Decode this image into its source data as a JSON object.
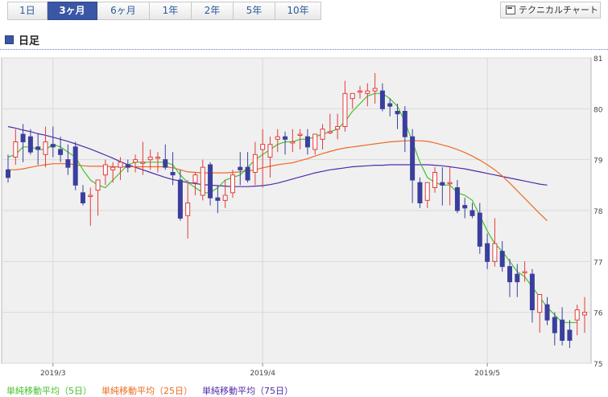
{
  "tabs": [
    "1日",
    "3ヶ月",
    "6ヶ月",
    "1年",
    "2年",
    "5年",
    "10年"
  ],
  "active_tab": "3ヶ月",
  "technical_button": {
    "label": "テクニカルチャート",
    "icon": "chart-window-icon"
  },
  "section_title": "日足",
  "colors": {
    "up": "#e23b3b",
    "down": "#3b3f9c",
    "ma5": "#44c22c",
    "ma25": "#ee6a1f",
    "ma75": "#4f2aa8",
    "plot_bg": "#f0f0f0",
    "grid": "#d9d9d9"
  },
  "legend": [
    {
      "label": "単純移動平均（5日）",
      "color": "#44c22c"
    },
    {
      "label": "単純移動平均（25日）",
      "color": "#ee6a1f"
    },
    {
      "label": "単純移動平均（75日）",
      "color": "#4f2aa8"
    }
  ],
  "chart_data": {
    "type": "candlestick",
    "title": "日足",
    "ylim": [
      75,
      81
    ],
    "y_ticks": [
      75,
      76,
      77,
      78,
      79,
      80,
      81
    ],
    "x_tick_labels": [
      {
        "label": "2019/3",
        "index": 6
      },
      {
        "label": "2019/4",
        "index": 34
      },
      {
        "label": "2019/5",
        "index": 64
      }
    ],
    "grid": true,
    "candles": [
      {
        "o": 78.8,
        "h": 79.1,
        "l": 78.55,
        "c": 78.65
      },
      {
        "o": 79.05,
        "h": 79.6,
        "l": 78.9,
        "c": 79.35
      },
      {
        "o": 79.5,
        "h": 79.7,
        "l": 78.95,
        "c": 79.35
      },
      {
        "o": 79.45,
        "h": 79.6,
        "l": 79.1,
        "c": 79.15
      },
      {
        "o": 79.25,
        "h": 79.5,
        "l": 78.9,
        "c": 79.2
      },
      {
        "o": 79.1,
        "h": 79.65,
        "l": 78.85,
        "c": 79.35
      },
      {
        "o": 79.3,
        "h": 79.65,
        "l": 79.05,
        "c": 79.25
      },
      {
        "o": 79.2,
        "h": 79.45,
        "l": 78.95,
        "c": 79.1
      },
      {
        "o": 79.0,
        "h": 79.3,
        "l": 78.7,
        "c": 78.85
      },
      {
        "o": 79.25,
        "h": 79.35,
        "l": 78.4,
        "c": 78.5
      },
      {
        "o": 78.35,
        "h": 78.5,
        "l": 78.1,
        "c": 78.15
      },
      {
        "o": 78.3,
        "h": 78.45,
        "l": 77.7,
        "c": 78.3
      },
      {
        "o": 78.4,
        "h": 78.55,
        "l": 77.9,
        "c": 78.6
      },
      {
        "o": 78.7,
        "h": 79.0,
        "l": 78.5,
        "c": 78.9
      },
      {
        "o": 78.8,
        "h": 78.95,
        "l": 78.55,
        "c": 78.85
      },
      {
        "o": 78.85,
        "h": 79.05,
        "l": 78.6,
        "c": 78.95
      },
      {
        "o": 78.9,
        "h": 79.0,
        "l": 78.75,
        "c": 78.85
      },
      {
        "o": 78.95,
        "h": 79.1,
        "l": 78.75,
        "c": 79.0
      },
      {
        "o": 78.95,
        "h": 79.35,
        "l": 78.7,
        "c": 78.95
      },
      {
        "o": 79.0,
        "h": 79.2,
        "l": 78.8,
        "c": 79.05
      },
      {
        "o": 79.05,
        "h": 79.15,
        "l": 78.75,
        "c": 79.05
      },
      {
        "o": 79.0,
        "h": 79.3,
        "l": 78.8,
        "c": 78.85
      },
      {
        "o": 78.75,
        "h": 79.15,
        "l": 78.5,
        "c": 78.7
      },
      {
        "o": 78.6,
        "h": 78.8,
        "l": 77.8,
        "c": 77.85
      },
      {
        "o": 77.9,
        "h": 78.6,
        "l": 77.45,
        "c": 78.15
      },
      {
        "o": 78.55,
        "h": 78.75,
        "l": 78.3,
        "c": 78.7
      },
      {
        "o": 78.3,
        "h": 79.0,
        "l": 78.2,
        "c": 78.85
      },
      {
        "o": 78.9,
        "h": 78.95,
        "l": 78.1,
        "c": 78.25
      },
      {
        "o": 78.25,
        "h": 78.5,
        "l": 77.95,
        "c": 78.2
      },
      {
        "o": 78.2,
        "h": 78.6,
        "l": 78.05,
        "c": 78.3
      },
      {
        "o": 78.35,
        "h": 78.8,
        "l": 78.25,
        "c": 78.7
      },
      {
        "o": 78.85,
        "h": 79.15,
        "l": 78.5,
        "c": 78.8
      },
      {
        "o": 78.85,
        "h": 79.15,
        "l": 78.55,
        "c": 78.6
      },
      {
        "o": 78.75,
        "h": 79.35,
        "l": 78.5,
        "c": 79.1
      },
      {
        "o": 79.2,
        "h": 79.6,
        "l": 78.45,
        "c": 79.3
      },
      {
        "o": 79.05,
        "h": 79.45,
        "l": 78.65,
        "c": 79.3
      },
      {
        "o": 79.4,
        "h": 79.6,
        "l": 79.15,
        "c": 79.45
      },
      {
        "o": 79.45,
        "h": 79.55,
        "l": 79.1,
        "c": 79.4
      },
      {
        "o": 79.35,
        "h": 79.6,
        "l": 79.15,
        "c": 79.35
      },
      {
        "o": 79.5,
        "h": 79.6,
        "l": 79.2,
        "c": 79.5
      },
      {
        "o": 79.45,
        "h": 79.6,
        "l": 79.1,
        "c": 79.25
      },
      {
        "o": 79.2,
        "h": 79.5,
        "l": 79.1,
        "c": 79.5
      },
      {
        "o": 79.4,
        "h": 79.7,
        "l": 79.2,
        "c": 79.6
      },
      {
        "o": 79.55,
        "h": 79.9,
        "l": 79.5,
        "c": 79.55
      },
      {
        "o": 79.6,
        "h": 79.9,
        "l": 79.4,
        "c": 79.65
      },
      {
        "o": 79.65,
        "h": 80.55,
        "l": 79.55,
        "c": 80.3
      },
      {
        "o": 80.2,
        "h": 80.3,
        "l": 80.0,
        "c": 80.3
      },
      {
        "o": 80.35,
        "h": 80.45,
        "l": 80.2,
        "c": 80.35
      },
      {
        "o": 80.3,
        "h": 80.5,
        "l": 80.05,
        "c": 80.35
      },
      {
        "o": 80.35,
        "h": 80.7,
        "l": 80.1,
        "c": 80.4
      },
      {
        "o": 80.35,
        "h": 80.5,
        "l": 79.95,
        "c": 80.0
      },
      {
        "o": 80.1,
        "h": 80.2,
        "l": 79.85,
        "c": 80.05
      },
      {
        "o": 79.95,
        "h": 80.1,
        "l": 79.6,
        "c": 79.9
      },
      {
        "o": 79.95,
        "h": 80.05,
        "l": 79.15,
        "c": 79.45
      },
      {
        "o": 79.45,
        "h": 79.6,
        "l": 78.15,
        "c": 78.6
      },
      {
        "o": 78.55,
        "h": 78.65,
        "l": 78.05,
        "c": 78.15
      },
      {
        "o": 78.2,
        "h": 78.55,
        "l": 78.05,
        "c": 78.55
      },
      {
        "o": 78.45,
        "h": 78.85,
        "l": 78.35,
        "c": 78.75
      },
      {
        "o": 78.55,
        "h": 78.85,
        "l": 78.1,
        "c": 78.5
      },
      {
        "o": 78.55,
        "h": 78.85,
        "l": 78.1,
        "c": 78.55
      },
      {
        "o": 78.45,
        "h": 78.6,
        "l": 77.95,
        "c": 78.0
      },
      {
        "o": 78.1,
        "h": 78.25,
        "l": 77.85,
        "c": 78.05
      },
      {
        "o": 78.0,
        "h": 78.15,
        "l": 77.85,
        "c": 77.9
      },
      {
        "o": 77.95,
        "h": 78.15,
        "l": 77.15,
        "c": 77.3
      },
      {
        "o": 77.35,
        "h": 77.55,
        "l": 76.85,
        "c": 77.0
      },
      {
        "o": 77.0,
        "h": 77.85,
        "l": 76.9,
        "c": 77.35
      },
      {
        "o": 77.2,
        "h": 77.4,
        "l": 76.8,
        "c": 76.9
      },
      {
        "o": 76.9,
        "h": 77.05,
        "l": 76.3,
        "c": 76.6
      },
      {
        "o": 76.75,
        "h": 76.95,
        "l": 76.3,
        "c": 76.6
      },
      {
        "o": 76.8,
        "h": 77.0,
        "l": 76.6,
        "c": 76.8
      },
      {
        "o": 76.75,
        "h": 76.85,
        "l": 75.8,
        "c": 76.05
      },
      {
        "o": 76.0,
        "h": 76.35,
        "l": 75.6,
        "c": 76.35
      },
      {
        "o": 76.15,
        "h": 76.3,
        "l": 75.75,
        "c": 75.85
      },
      {
        "o": 75.9,
        "h": 76.0,
        "l": 75.35,
        "c": 75.6
      },
      {
        "o": 75.85,
        "h": 76.1,
        "l": 75.35,
        "c": 75.45
      },
      {
        "o": 75.65,
        "h": 75.85,
        "l": 75.3,
        "c": 75.45
      },
      {
        "o": 75.85,
        "h": 76.15,
        "l": 75.55,
        "c": 76.05
      },
      {
        "o": 75.95,
        "h": 76.3,
        "l": 75.6,
        "c": 76.0
      }
    ],
    "series": [
      {
        "name": "単純移動平均（5日）",
        "values": [
          79.05,
          79.1,
          79.25,
          79.25,
          79.2,
          79.2,
          79.3,
          79.25,
          79.15,
          79.05,
          78.8,
          78.6,
          78.5,
          78.45,
          78.6,
          78.75,
          78.9,
          78.95,
          78.95,
          78.95,
          78.95,
          78.95,
          78.9,
          78.7,
          78.55,
          78.45,
          78.35,
          78.35,
          78.45,
          78.6,
          78.65,
          78.7,
          78.85,
          79.0,
          79.1,
          79.2,
          79.3,
          79.35,
          79.35,
          79.4,
          79.4,
          79.45,
          79.5,
          79.55,
          79.6,
          79.75,
          79.95,
          80.1,
          80.25,
          80.3,
          80.3,
          80.2,
          80.05,
          79.75,
          79.35,
          78.95,
          78.65,
          78.55,
          78.5,
          78.5,
          78.35,
          78.3,
          78.2,
          77.9,
          77.6,
          77.35,
          77.2,
          77.0,
          76.8,
          76.7,
          76.5,
          76.3,
          76.1,
          75.95,
          75.8,
          75.8,
          75.8
        ]
      },
      {
        "name": "単純移動平均（25日）",
        "values": [
          78.8,
          78.8,
          78.82,
          78.85,
          78.88,
          78.9,
          78.92,
          78.92,
          78.92,
          78.9,
          78.88,
          78.87,
          78.87,
          78.87,
          78.86,
          78.86,
          78.86,
          78.86,
          78.86,
          78.86,
          78.86,
          78.86,
          78.84,
          78.8,
          78.76,
          78.75,
          78.74,
          78.74,
          78.74,
          78.74,
          78.75,
          78.76,
          78.78,
          78.8,
          78.84,
          78.87,
          78.9,
          78.92,
          78.94,
          78.98,
          79.02,
          79.07,
          79.12,
          79.16,
          79.2,
          79.23,
          79.25,
          79.27,
          79.29,
          79.31,
          79.33,
          79.35,
          79.36,
          79.37,
          79.37,
          79.37,
          79.36,
          79.33,
          79.29,
          79.25,
          79.2,
          79.14,
          79.07,
          78.99,
          78.9,
          78.8,
          78.68,
          78.54,
          78.39,
          78.24,
          78.09,
          77.94,
          77.8
        ]
      },
      {
        "name": "単純移動平均（75日）",
        "values": [
          79.65,
          79.62,
          79.58,
          79.55,
          79.51,
          79.48,
          79.44,
          79.4,
          79.36,
          79.31,
          79.26,
          79.21,
          79.15,
          79.09,
          79.03,
          78.96,
          78.9,
          78.85,
          78.8,
          78.75,
          78.7,
          78.65,
          78.61,
          78.58,
          78.55,
          78.53,
          78.51,
          78.5,
          78.49,
          78.48,
          78.47,
          78.47,
          78.47,
          78.48,
          78.49,
          78.51,
          78.54,
          78.58,
          78.62,
          78.66,
          78.7,
          78.74,
          78.77,
          78.8,
          78.82,
          78.84,
          78.86,
          78.87,
          78.88,
          78.89,
          78.89,
          78.9,
          78.9,
          78.9,
          78.9,
          78.9,
          78.9,
          78.89,
          78.88,
          78.86,
          78.84,
          78.82,
          78.79,
          78.76,
          78.73,
          78.7,
          78.67,
          78.64,
          78.61,
          78.58,
          78.55,
          78.52,
          78.5
        ]
      }
    ]
  }
}
